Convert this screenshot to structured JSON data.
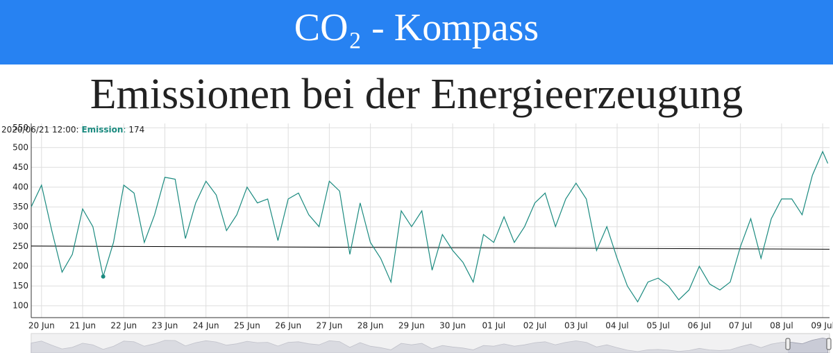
{
  "header": {
    "title": "CO₂ - Kompass"
  },
  "subtitle": "Emissionen bei der Energieerzeugung",
  "chart_data": {
    "type": "line",
    "x": [
      "2020-06-19T18:00",
      "2020-06-20T00:00",
      "2020-06-20T06:00",
      "2020-06-20T12:00",
      "2020-06-20T18:00",
      "2020-06-21T00:00",
      "2020-06-21T06:00",
      "2020-06-21T12:00",
      "2020-06-21T18:00",
      "2020-06-22T00:00",
      "2020-06-22T06:00",
      "2020-06-22T12:00",
      "2020-06-22T18:00",
      "2020-06-23T00:00",
      "2020-06-23T06:00",
      "2020-06-23T12:00",
      "2020-06-23T18:00",
      "2020-06-24T00:00",
      "2020-06-24T06:00",
      "2020-06-24T12:00",
      "2020-06-24T18:00",
      "2020-06-25T00:00",
      "2020-06-25T06:00",
      "2020-06-25T12:00",
      "2020-06-25T18:00",
      "2020-06-26T00:00",
      "2020-06-26T06:00",
      "2020-06-26T12:00",
      "2020-06-26T18:00",
      "2020-06-27T00:00",
      "2020-06-27T06:00",
      "2020-06-27T12:00",
      "2020-06-27T18:00",
      "2020-06-28T00:00",
      "2020-06-28T06:00",
      "2020-06-28T12:00",
      "2020-06-28T18:00",
      "2020-06-29T00:00",
      "2020-06-29T06:00",
      "2020-06-29T12:00",
      "2020-06-29T18:00",
      "2020-06-30T00:00",
      "2020-06-30T06:00",
      "2020-06-30T12:00",
      "2020-06-30T18:00",
      "2020-07-01T00:00",
      "2020-07-01T06:00",
      "2020-07-01T12:00",
      "2020-07-01T18:00",
      "2020-07-02T00:00",
      "2020-07-02T06:00",
      "2020-07-02T12:00",
      "2020-07-02T18:00",
      "2020-07-03T00:00",
      "2020-07-03T06:00",
      "2020-07-03T12:00",
      "2020-07-03T18:00",
      "2020-07-04T00:00",
      "2020-07-04T06:00",
      "2020-07-04T12:00",
      "2020-07-04T18:00",
      "2020-07-05T00:00",
      "2020-07-05T06:00",
      "2020-07-05T12:00",
      "2020-07-05T18:00",
      "2020-07-06T00:00",
      "2020-07-06T06:00",
      "2020-07-06T12:00",
      "2020-07-06T18:00",
      "2020-07-07T00:00",
      "2020-07-07T06:00",
      "2020-07-07T12:00",
      "2020-07-07T18:00",
      "2020-07-08T00:00",
      "2020-07-08T06:00",
      "2020-07-08T12:00",
      "2020-07-08T18:00",
      "2020-07-09T00:00",
      "2020-07-09T03:00"
    ],
    "series": [
      {
        "name": "Emission",
        "color": "#1a8a7f",
        "values": [
          350,
          405,
          290,
          185,
          230,
          345,
          300,
          174,
          260,
          405,
          385,
          260,
          330,
          425,
          420,
          270,
          360,
          415,
          380,
          290,
          330,
          400,
          360,
          370,
          265,
          370,
          385,
          330,
          300,
          415,
          390,
          230,
          360,
          260,
          220,
          160,
          340,
          300,
          340,
          190,
          280,
          240,
          210,
          160,
          280,
          260,
          325,
          260,
          300,
          360,
          385,
          300,
          370,
          410,
          370,
          240,
          300,
          220,
          150,
          110,
          160,
          170,
          150,
          115,
          140,
          200,
          155,
          140,
          160,
          250,
          320,
          220,
          320,
          370,
          370,
          330,
          430,
          490,
          460
        ]
      }
    ],
    "reference_line": {
      "values": [
        251,
        243
      ],
      "color": "#000000"
    },
    "legend": {
      "time": "2020/06/21 12:00:",
      "separator": ":",
      "index": 7
    },
    "xlim": [
      "2020-06-19T18:00",
      "2020-07-09T04:00"
    ],
    "xticks": [
      {
        "value": "2020-06-20T00:00",
        "label": "20 Jun"
      },
      {
        "value": "2020-06-21T00:00",
        "label": "21 Jun"
      },
      {
        "value": "2020-06-22T00:00",
        "label": "22 Jun"
      },
      {
        "value": "2020-06-23T00:00",
        "label": "23 Jun"
      },
      {
        "value": "2020-06-24T00:00",
        "label": "24 Jun"
      },
      {
        "value": "2020-06-25T00:00",
        "label": "25 Jun"
      },
      {
        "value": "2020-06-26T00:00",
        "label": "26 Jun"
      },
      {
        "value": "2020-06-27T00:00",
        "label": "27 Jun"
      },
      {
        "value": "2020-06-28T00:00",
        "label": "28 Jun"
      },
      {
        "value": "2020-06-29T00:00",
        "label": "29 Jun"
      },
      {
        "value": "2020-06-30T00:00",
        "label": "30 Jun"
      },
      {
        "value": "2020-07-01T00:00",
        "label": "01 Jul"
      },
      {
        "value": "2020-07-02T00:00",
        "label": "02 Jul"
      },
      {
        "value": "2020-07-03T00:00",
        "label": "03 Jul"
      },
      {
        "value": "2020-07-04T00:00",
        "label": "04 Jul"
      },
      {
        "value": "2020-07-05T00:00",
        "label": "05 Jul"
      },
      {
        "value": "2020-07-06T00:00",
        "label": "06 Jul"
      },
      {
        "value": "2020-07-07T00:00",
        "label": "07 Jul"
      },
      {
        "value": "2020-07-08T00:00",
        "label": "08 Jul"
      },
      {
        "value": "2020-07-09T00:00",
        "label": "09 Jul"
      }
    ],
    "ylim": [
      70,
      561
    ],
    "yticks": [
      100,
      150,
      200,
      250,
      300,
      350,
      400,
      450,
      500,
      550
    ],
    "grid": true
  }
}
